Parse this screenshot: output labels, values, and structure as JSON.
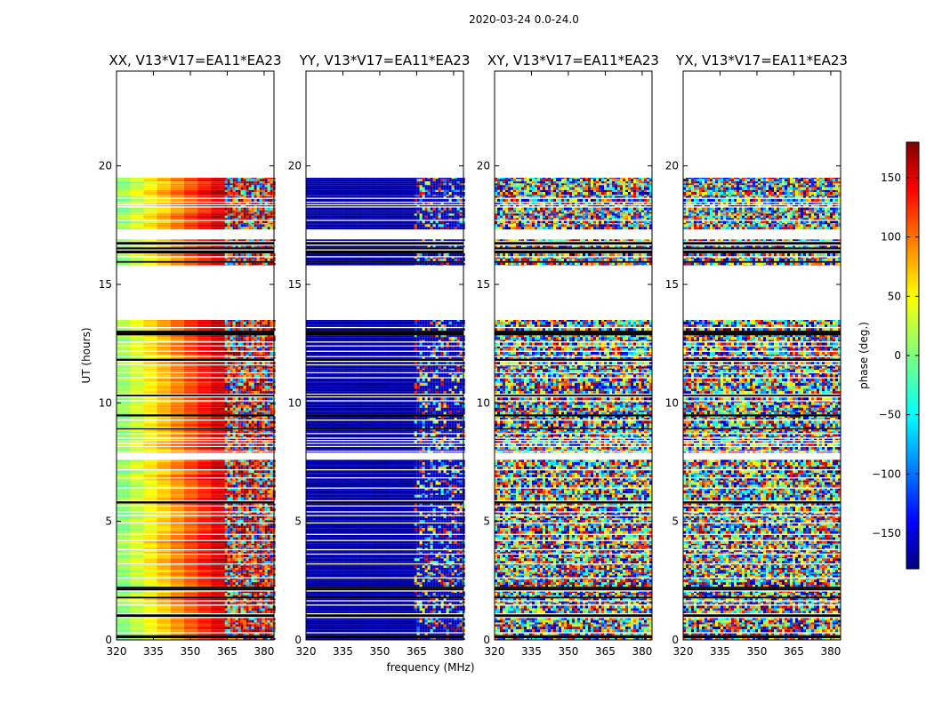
{
  "chart_data": {
    "type": "heatmap",
    "suptitle": "2020-03-24 0.0-24.0",
    "xlabel": "frequency (MHz)",
    "ylabel": "UT (hours)",
    "xlim": [
      320,
      384
    ],
    "ylim": [
      0,
      24
    ],
    "xticks": [
      320,
      335,
      350,
      365,
      380
    ],
    "xtick_labels": [
      "320",
      "335",
      "350",
      "365",
      "380"
    ],
    "yticks": [
      0,
      5,
      10,
      15,
      20
    ],
    "ytick_labels": [
      "0",
      "5",
      "10",
      "15",
      "20"
    ],
    "panels": [
      {
        "title": "XX, V13*V17=EA11*EA23",
        "pattern": "smooth",
        "base_phase": 5,
        "slope": 4.5
      },
      {
        "title": "YY, V13*V17=EA11*EA23",
        "pattern": "blue",
        "base_phase": -165,
        "slope": 0
      },
      {
        "title": "XY, V13*V17=EA11*EA23",
        "pattern": "noise",
        "base_phase": 0,
        "slope": 0
      },
      {
        "title": "YX, V13*V17=EA11*EA23",
        "pattern": "noise",
        "base_phase": 0,
        "slope": 0
      }
    ],
    "noisy_above_freq_MHz": 364,
    "occupied_hour_ranges": [
      [
        0,
        7.6
      ],
      [
        7.9,
        13.5
      ],
      [
        15.8,
        16.9
      ],
      [
        17.3,
        19.5
      ]
    ],
    "colorbar": {
      "label": "phase (deg.)",
      "range": [
        -180,
        180
      ],
      "ticks": [
        150,
        100,
        50,
        0,
        -50,
        -100,
        -150
      ],
      "tick_labels": [
        "150",
        "100",
        "50",
        "0",
        "−50",
        "−100",
        "−150"
      ],
      "colormap": "jet"
    }
  }
}
